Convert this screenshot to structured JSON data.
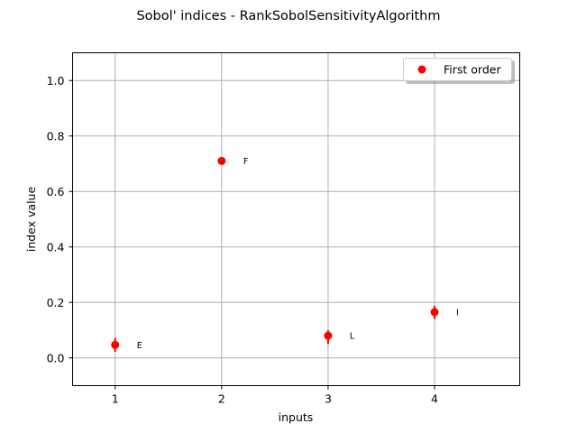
{
  "chart_data": {
    "type": "scatter",
    "title": "Sobol' indices - RankSobolSensitivityAlgorithm",
    "xlabel": "inputs",
    "ylabel": "index value",
    "xlim": [
      0.6,
      4.8
    ],
    "ylim": [
      -0.1,
      1.1
    ],
    "xticks": [
      1,
      2,
      3,
      4
    ],
    "yticks": [
      0.0,
      0.2,
      0.4,
      0.6,
      0.8,
      1.0
    ],
    "ytick_labels": [
      "0.0",
      "0.2",
      "0.4",
      "0.6",
      "0.8",
      "1.0"
    ],
    "grid": true,
    "legend_position": "top-right",
    "series": [
      {
        "name": "First order",
        "color": "#ff0000",
        "points": [
          {
            "x": 1,
            "y": 0.047,
            "err_low": 0.022,
            "err_high": 0.072,
            "label": "E"
          },
          {
            "x": 2,
            "y": 0.71,
            "err_low": 0.7,
            "err_high": 0.72,
            "label": "F"
          },
          {
            "x": 3,
            "y": 0.08,
            "err_low": 0.05,
            "err_high": 0.1,
            "label": "L"
          },
          {
            "x": 4,
            "y": 0.165,
            "err_low": 0.14,
            "err_high": 0.188,
            "label": "I"
          }
        ]
      }
    ]
  }
}
